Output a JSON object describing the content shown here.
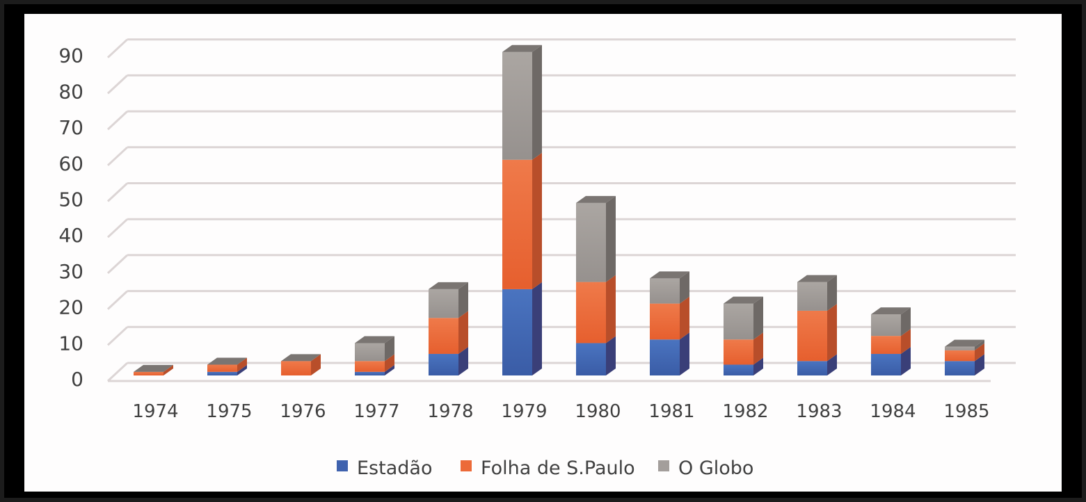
{
  "chart_data": {
    "type": "bar",
    "stacked": true,
    "style": "3d-stacked-column",
    "title": "",
    "xlabel": "",
    "ylabel": "",
    "categories": [
      "1974",
      "1975",
      "1976",
      "1977",
      "1978",
      "1979",
      "1980",
      "1981",
      "1982",
      "1983",
      "1984",
      "1985"
    ],
    "series": [
      {
        "name": "Estadão",
        "color": "#4472C4",
        "values": [
          0,
          1,
          0,
          1,
          6,
          24,
          9,
          10,
          3,
          4,
          6,
          4
        ]
      },
      {
        "name": "Folha de S.Paulo",
        "color": "#ED7D31",
        "values": [
          1,
          2,
          4,
          3,
          10,
          36,
          17,
          10,
          7,
          14,
          5,
          3
        ]
      },
      {
        "name": "O Globo",
        "color": "#A5A5A5",
        "values": [
          0,
          0,
          0,
          5,
          8,
          30,
          22,
          7,
          10,
          8,
          6,
          1
        ]
      }
    ],
    "totals": [
      1,
      3,
      4,
      9,
      24,
      90,
      48,
      27,
      20,
      26,
      17,
      8
    ],
    "ylim": [
      0,
      90
    ],
    "yticks": [
      "0",
      "10",
      "20",
      "30",
      "40",
      "50",
      "60",
      "70",
      "80",
      "90"
    ],
    "grid": true,
    "legend_position": "bottom"
  },
  "legend": {
    "items": [
      {
        "label": "Estadão",
        "color": "#3F62AE"
      },
      {
        "label": "Folha de S.Paulo",
        "color": "#EC6A38"
      },
      {
        "label": "O Globo",
        "color": "#A39E9B"
      }
    ]
  }
}
